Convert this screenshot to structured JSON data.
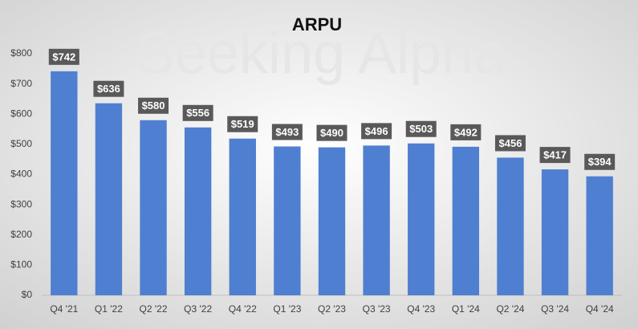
{
  "chart_data": {
    "type": "bar",
    "title": "ARPU",
    "watermark": "Seeking Alpha",
    "categories": [
      "Q4 '21",
      "Q1 '22",
      "Q2 '22",
      "Q3 '22",
      "Q4 '22",
      "Q1 '23",
      "Q2 '23",
      "Q3 '23",
      "Q4 '23",
      "Q1 '24",
      "Q2 '24",
      "Q3 '24",
      "Q4 '24"
    ],
    "values": [
      742,
      636,
      580,
      556,
      519,
      493,
      490,
      496,
      503,
      492,
      456,
      417,
      394
    ],
    "value_labels": [
      "$742",
      "$636",
      "$580",
      "$556",
      "$519",
      "$493",
      "$490",
      "$496",
      "$503",
      "$492",
      "$456",
      "$417",
      "$394"
    ],
    "color": "#4f7fd0",
    "ylim": [
      0,
      800
    ],
    "yticks": [
      {
        "value": 0,
        "label": "$0"
      },
      {
        "value": 100,
        "label": "$100"
      },
      {
        "value": 200,
        "label": "$200"
      },
      {
        "value": 300,
        "label": "$300"
      },
      {
        "value": 400,
        "label": "$400"
      },
      {
        "value": 500,
        "label": "$500"
      },
      {
        "value": 600,
        "label": "$600"
      },
      {
        "value": 700,
        "label": "$700"
      },
      {
        "value": 800,
        "label": "$800"
      }
    ],
    "grid": false
  }
}
